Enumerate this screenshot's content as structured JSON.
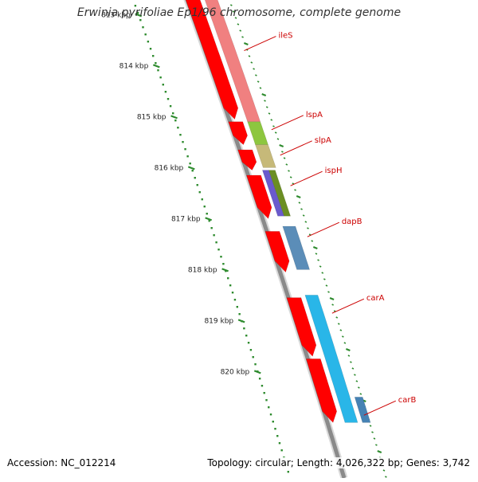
{
  "title": "Erwinia pyrifoliae Ep1/96 chromosome, complete genome",
  "footer": {
    "accession": "Accession: NC_012214",
    "summary": "Topology: circular; Length: 4,026,322 bp; Genes: 3,742"
  },
  "colors": {
    "scale": "#2e8b2e",
    "backbone": "#8a8a8a",
    "forward_strand": "#ff0000",
    "gene_label": "#cc0000",
    "label_line": "#cc0000"
  },
  "scale": {
    "unit": "kbp",
    "ticks": [
      {
        "kbp": 813,
        "label": "813 kbp"
      },
      {
        "kbp": 814,
        "label": "814 kbp"
      },
      {
        "kbp": 815,
        "label": "815 kbp"
      },
      {
        "kbp": 816,
        "label": "816 kbp"
      },
      {
        "kbp": 817,
        "label": "817 kbp"
      },
      {
        "kbp": 818,
        "label": "818 kbp"
      },
      {
        "kbp": 819,
        "label": "819 kbp"
      },
      {
        "kbp": 820,
        "label": "820 kbp"
      }
    ]
  },
  "red_features": [
    {
      "start": 812.4,
      "end": 815.05
    },
    {
      "start": 815.1,
      "end": 815.55
    },
    {
      "start": 815.65,
      "end": 816.05
    },
    {
      "start": 816.15,
      "end": 817.0
    },
    {
      "start": 817.25,
      "end": 818.05
    },
    {
      "start": 818.55,
      "end": 819.7
    },
    {
      "start": 819.75,
      "end": 821.0
    }
  ],
  "genes": [
    {
      "name": "ileS",
      "start": 812.4,
      "end": 815.1,
      "color": "#f08080",
      "label_kbp": 813.3
    },
    {
      "name": "lspA",
      "start": 815.1,
      "end": 815.55,
      "color": "#8dc63f",
      "label_kbp": 814.85
    },
    {
      "name": "slpA",
      "start": 815.55,
      "end": 816.0,
      "color": "#c6b979",
      "label_kbp": 815.35
    },
    {
      "name": "ispH",
      "start": 816.05,
      "end": 816.95,
      "color": "#6a5acd",
      "label_kbp": 815.95
    },
    {
      "name": "dapB",
      "start": 817.15,
      "end": 818.0,
      "color": "#5b8db8",
      "label_kbp": 816.95
    },
    {
      "name": "carA",
      "start": 818.5,
      "end": 821.0,
      "color": "#29b6e8",
      "label_kbp": 818.45
    },
    {
      "name": "carB",
      "start": 820.5,
      "end": 821.0,
      "color": "#4682b4",
      "label_kbp": 820.45
    }
  ],
  "top_feature": {
    "color": "#0000ee"
  }
}
